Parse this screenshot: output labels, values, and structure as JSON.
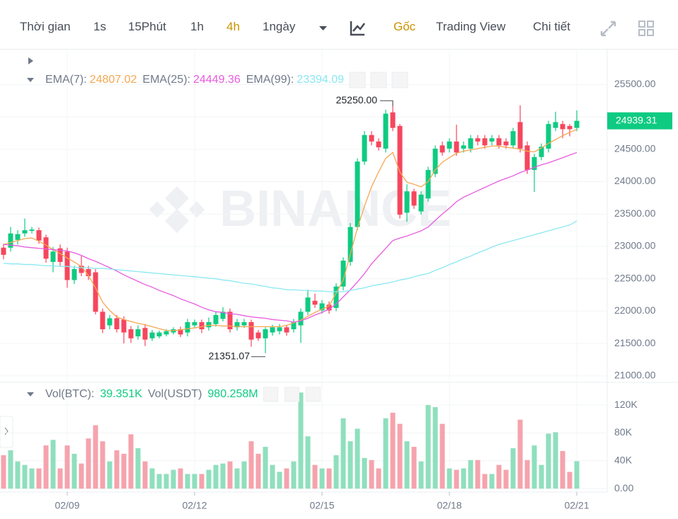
{
  "toolbar": {
    "time_label": "Thời gian",
    "intervals": [
      "1s",
      "15Phút",
      "1h",
      "4h",
      "1ngày"
    ],
    "active_interval": "4h",
    "views": [
      "Gốc",
      "Trading View",
      "Chi tiết"
    ],
    "active_view": "Gốc"
  },
  "chart_data": [
    {
      "type": "candlestick",
      "watermark": "BINANCE",
      "categories": [
        null,
        null,
        null,
        null,
        null,
        null,
        null,
        null,
        null,
        "02/09",
        null,
        null,
        null,
        null,
        null,
        null,
        null,
        null,
        null,
        null,
        null,
        null,
        null,
        null,
        null,
        null,
        null,
        "02/12",
        null,
        null,
        null,
        null,
        null,
        null,
        null,
        null,
        null,
        null,
        null,
        null,
        null,
        null,
        null,
        null,
        null,
        "02/15",
        null,
        null,
        null,
        null,
        null,
        null,
        null,
        null,
        null,
        null,
        null,
        null,
        null,
        null,
        null,
        null,
        null,
        "02/18",
        null,
        null,
        null,
        null,
        null,
        null,
        null,
        null,
        null,
        null,
        null,
        null,
        null,
        null,
        null,
        null,
        null,
        "02/21"
      ],
      "open": [
        22980,
        22980,
        23100,
        23200,
        23240,
        23250,
        23140,
        22760,
        22970,
        22920,
        22480,
        22700,
        22650,
        22600,
        21990,
        21780,
        21890,
        21870,
        21720,
        21610,
        21740,
        21580,
        21610,
        21640,
        21670,
        21720,
        21670,
        21780,
        21830,
        21750,
        21800,
        21880,
        21990,
        21750,
        21780,
        21830,
        21670,
        21580,
        21670,
        21690,
        21750,
        21720,
        21780,
        21990,
        22160,
        22010,
        22100,
        22050,
        22380,
        22760,
        23300,
        24310,
        24720,
        24620,
        24510,
        25070,
        24860,
        23520,
        23850,
        23540,
        23740,
        24120,
        24560,
        24510,
        24620,
        24510,
        24510,
        24670,
        24670,
        24620,
        24670,
        24620,
        24560,
        24920,
        24560,
        24180,
        24380,
        24510,
        24830,
        24890,
        24860,
        24830
      ],
      "high": [
        23040,
        23300,
        23250,
        23430,
        23300,
        23290,
        23180,
        22990,
        23030,
        22980,
        22700,
        22850,
        22700,
        22650,
        22040,
        21940,
        21940,
        21920,
        21770,
        21780,
        21800,
        21710,
        21700,
        21720,
        21750,
        21760,
        21880,
        21870,
        21870,
        21900,
        21990,
        22060,
        22040,
        21880,
        21880,
        21870,
        21710,
        21750,
        21790,
        21800,
        21790,
        21880,
        22040,
        22330,
        22270,
        22170,
        22150,
        22430,
        22830,
        23360,
        24360,
        24780,
        24780,
        24670,
        25110,
        25250,
        24890,
        23960,
        23890,
        23850,
        24230,
        24560,
        24620,
        24670,
        24880,
        24620,
        24720,
        24720,
        24720,
        24720,
        24720,
        24670,
        24830,
        25180,
        24620,
        24430,
        24590,
        24940,
        25080,
        24940,
        24890,
        25100
      ],
      "low": [
        22800,
        22920,
        23030,
        23150,
        23200,
        23040,
        22750,
        22600,
        22700,
        22360,
        22420,
        22540,
        22480,
        21950,
        21660,
        21720,
        21670,
        21500,
        21510,
        21560,
        21460,
        21540,
        21580,
        21610,
        21640,
        21600,
        21610,
        21740,
        21660,
        21700,
        21760,
        21840,
        21670,
        21700,
        21740,
        21450,
        21540,
        21351.07,
        21620,
        21640,
        21620,
        21670,
        21510,
        21940,
        22050,
        21960,
        21960,
        22000,
        22320,
        22700,
        23250,
        24260,
        24560,
        24480,
        24450,
        24780,
        23430,
        23380,
        23580,
        23490,
        23690,
        24070,
        24400,
        24450,
        24400,
        24450,
        24450,
        24560,
        24510,
        24560,
        24510,
        24510,
        24510,
        24450,
        24120,
        23840,
        24330,
        24450,
        24780,
        24670,
        24700,
        24780
      ],
      "close": [
        22870,
        23200,
        23190,
        23250,
        23260,
        23090,
        22810,
        22920,
        22760,
        22480,
        22650,
        22590,
        22540,
        21990,
        21720,
        21890,
        21720,
        21670,
        21580,
        21720,
        21560,
        21670,
        21670,
        21690,
        21720,
        21640,
        21830,
        21830,
        21720,
        21830,
        21940,
        21990,
        21720,
        21830,
        21830,
        21560,
        21580,
        21720,
        21750,
        21750,
        21670,
        21830,
        21990,
        22210,
        22100,
        22120,
        22010,
        22380,
        22780,
        23300,
        24310,
        24720,
        24620,
        24530,
        25050,
        24830,
        23490,
        23850,
        23630,
        23800,
        24180,
        24510,
        24450,
        24620,
        24450,
        24560,
        24670,
        24620,
        24560,
        24670,
        24560,
        24560,
        24780,
        24510,
        24180,
        24380,
        24540,
        24890,
        24920,
        24810,
        24810,
        24939.31
      ],
      "colors": {
        "up": "#0ecb81",
        "down": "#f6465d"
      },
      "series": [
        {
          "name": "EMA(7):",
          "color": "#f5a853",
          "values": [
            23030,
            23060,
            23090,
            23120,
            23130,
            23080,
            23020,
            22950,
            22890,
            22820,
            22760,
            22690,
            22550,
            22360,
            22140,
            22010,
            21910,
            21870,
            21840,
            21810,
            21790,
            21760,
            21730,
            21700,
            21700,
            21710,
            21730,
            21740,
            21760,
            21780,
            21780,
            21770,
            21770,
            21760,
            21760,
            21760,
            21760,
            21760,
            21760,
            21760,
            21780,
            21820,
            21860,
            21920,
            21980,
            22030,
            22080,
            22280,
            22480,
            22880,
            23280,
            23620,
            23920,
            24150,
            24360,
            24450,
            24150,
            23990,
            23960,
            23920,
            24000,
            24180,
            24300,
            24370,
            24440,
            24470,
            24490,
            24510,
            24530,
            24550,
            24550,
            24530,
            24520,
            24500,
            24470,
            24460,
            24520,
            24590,
            24650,
            24710,
            24760,
            24807.02
          ]
        },
        {
          "name": "EMA(25):",
          "color": "#e85be0",
          "values": [
            23030,
            23020,
            23010,
            22990,
            22980,
            22970,
            22960,
            22950,
            22940,
            22930,
            22900,
            22860,
            22810,
            22770,
            22720,
            22670,
            22620,
            22560,
            22510,
            22460,
            22410,
            22370,
            22320,
            22280,
            22240,
            22190,
            22150,
            22110,
            22060,
            22020,
            21990,
            21980,
            21960,
            21950,
            21930,
            21910,
            21900,
            21890,
            21870,
            21860,
            21850,
            21830,
            21850,
            21890,
            21940,
            21980,
            22030,
            22110,
            22220,
            22330,
            22450,
            22580,
            22730,
            22850,
            22970,
            23090,
            23130,
            23160,
            23200,
            23240,
            23300,
            23400,
            23500,
            23590,
            23690,
            23760,
            23810,
            23860,
            23910,
            23960,
            24010,
            24050,
            24090,
            24140,
            24180,
            24220,
            24260,
            24290,
            24330,
            24370,
            24410,
            24449.36
          ]
        },
        {
          "name": "EMA(99):",
          "color": "#8ae8f2",
          "values": [
            22740,
            22730,
            22730,
            22720,
            22720,
            22710,
            22700,
            22700,
            22690,
            22690,
            22680,
            22670,
            22670,
            22660,
            22660,
            22650,
            22640,
            22630,
            22620,
            22610,
            22600,
            22590,
            22580,
            22570,
            22560,
            22550,
            22540,
            22530,
            22520,
            22510,
            22500,
            22480,
            22470,
            22450,
            22430,
            22420,
            22400,
            22380,
            22360,
            22350,
            22330,
            22330,
            22320,
            22320,
            22310,
            22310,
            22300,
            22300,
            22300,
            22320,
            22340,
            22360,
            22390,
            22410,
            22430,
            22450,
            22480,
            22500,
            22530,
            22560,
            22580,
            22630,
            22670,
            22720,
            22760,
            22810,
            22850,
            22900,
            22940,
            22990,
            23030,
            23060,
            23090,
            23120,
            23150,
            23180,
            23210,
            23240,
            23270,
            23300,
            23330,
            23394.09
          ]
        }
      ],
      "ylim": [
        20900,
        26040
      ],
      "yticks": [
        {
          "value": 25500,
          "label": "25500.00"
        },
        {
          "value": 25000,
          "label": "25000.00"
        },
        {
          "value": 24500,
          "label": "24500.00"
        },
        {
          "value": 24000,
          "label": "24000.00"
        },
        {
          "value": 23500,
          "label": "23500.00"
        },
        {
          "value": 23000,
          "label": "23000.00"
        },
        {
          "value": 22500,
          "label": "22500.00"
        },
        {
          "value": 22000,
          "label": "22000.00"
        },
        {
          "value": 21500,
          "label": "21500.00"
        },
        {
          "value": 21000,
          "label": "21000.00"
        }
      ],
      "annotations": [
        {
          "value": 25250,
          "label": "25250.00"
        },
        21351.07
      ],
      "grid": true
    },
    {
      "type": "bar",
      "legend": [
        {
          "name": "Vol(BTC):",
          "value": "39.351K"
        },
        {
          "name": "Vol(USDT)",
          "value": "980.258M"
        }
      ],
      "values": [
        48000,
        55000,
        39000,
        34000,
        29000,
        29000,
        62000,
        70000,
        29000,
        62000,
        50000,
        36000,
        72000,
        91000,
        68000,
        39000,
        55000,
        50000,
        78000,
        58000,
        39000,
        29000,
        21000,
        21000,
        27000,
        29000,
        21000,
        21000,
        21000,
        27000,
        34000,
        36000,
        39000,
        29000,
        39000,
        68000,
        50000,
        60000,
        34000,
        24000,
        29000,
        39000,
        138000,
        75000,
        34000,
        29000,
        29000,
        48000,
        101000,
        68000,
        86000,
        44000,
        41000,
        29000,
        101000,
        109000,
        93000,
        68000,
        60000,
        39000,
        120000,
        117000,
        93000,
        29000,
        27000,
        29000,
        41000,
        41000,
        21000,
        21000,
        34000,
        27000,
        58000,
        99000,
        41000,
        62000,
        34000,
        79000,
        81000,
        54000,
        24000,
        39351
      ],
      "colors": {
        "up": "#8fdfbd",
        "down": "#f5a3ad"
      },
      "ylim": [
        -5000,
        147500
      ],
      "yticks": [
        {
          "value": 120000,
          "label": "120K"
        },
        {
          "value": 80000,
          "label": "80K"
        },
        {
          "value": 40000,
          "label": "40K"
        },
        {
          "value": 0,
          "label": "0.00"
        }
      ],
      "grid": true
    }
  ]
}
